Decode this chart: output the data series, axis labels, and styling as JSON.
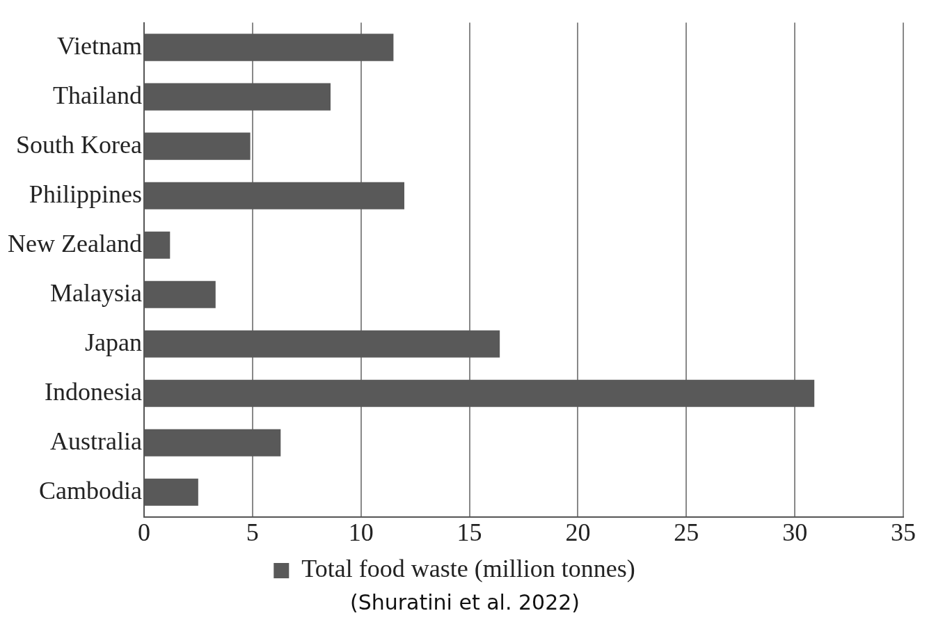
{
  "chart_data": {
    "type": "bar",
    "orientation": "horizontal",
    "categories": [
      "Vietnam",
      "Thailand",
      "South Korea",
      "Philippines",
      "New Zealand",
      "Malaysia",
      "Japan",
      "Indonesia",
      "Australia",
      "Cambodia"
    ],
    "series": [
      {
        "name": "Total food waste (million tonnes)",
        "color": "#595959",
        "values": [
          11.5,
          8.6,
          4.9,
          12.0,
          1.2,
          3.3,
          16.4,
          30.9,
          6.3,
          2.5
        ]
      }
    ],
    "xlim": [
      0,
      35
    ],
    "xticks": [
      0,
      5,
      10,
      15,
      20,
      25,
      30,
      35
    ],
    "grid": "x",
    "legend": "bottom",
    "annotations": [
      "(Shuratini et al. 2022)"
    ]
  }
}
